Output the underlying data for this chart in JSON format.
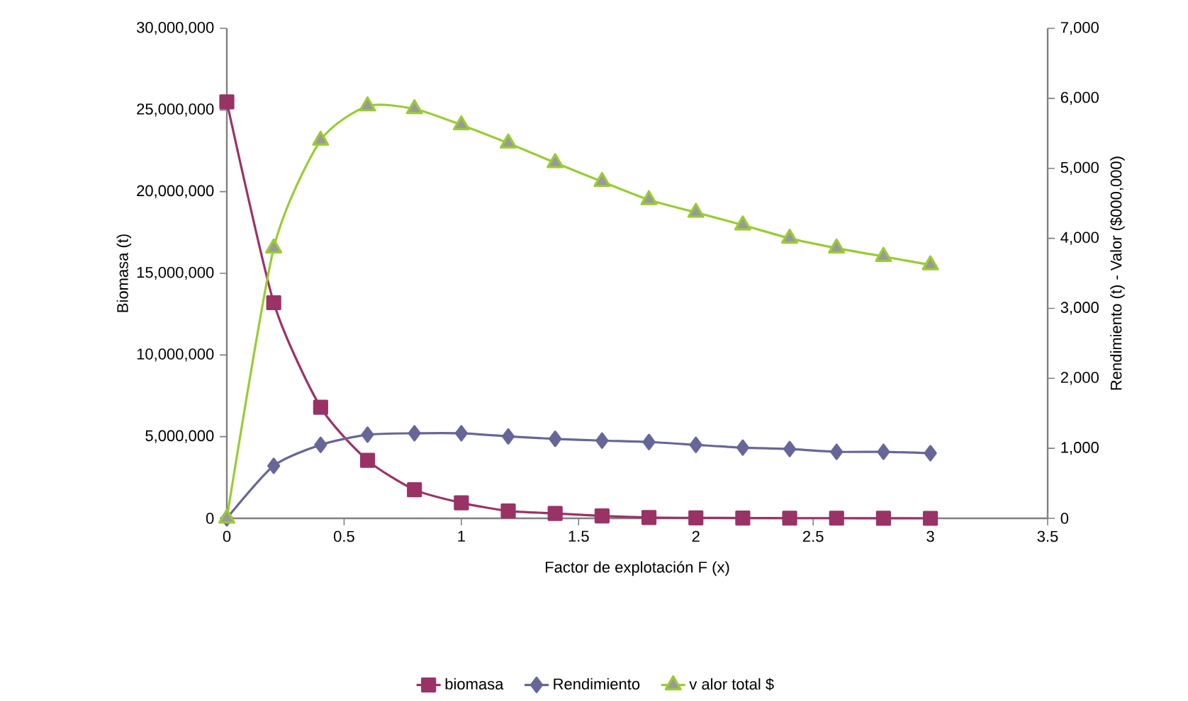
{
  "chart_data": {
    "type": "line",
    "xlabel": "Factor de explotación F (x)",
    "ylabel": "Biomasa (t)",
    "y2label": "Rendimiento (t) - Valor ($000,000)",
    "x": [
      0,
      0.2,
      0.4,
      0.6,
      0.8,
      1.0,
      1.2,
      1.4,
      1.6,
      1.8,
      2.0,
      2.2,
      2.4,
      2.6,
      2.8,
      3.0
    ],
    "series": [
      {
        "name": "biomasa",
        "color": "#993366",
        "marker": "square",
        "values": [
          25500000,
          13200000,
          6800000,
          3550000,
          1750000,
          950000,
          450000,
          300000,
          150000,
          50000,
          30000,
          20000,
          10000,
          10000,
          5000,
          0
        ]
      },
      {
        "name": "Rendimiento",
        "color": "#666699",
        "marker": "diamond",
        "axis": "y2",
        "values": [
          0,
          750,
          1050,
          1195,
          1215,
          1215,
          1170,
          1135,
          1110,
          1090,
          1050,
          1010,
          990,
          950,
          950,
          930
        ]
      },
      {
        "name": "v alor total $",
        "color": "#99cc33",
        "marker": "triangle",
        "axis": "y2",
        "values": [
          0,
          3860,
          5400,
          5890,
          5850,
          5620,
          5360,
          5080,
          4810,
          4550,
          4370,
          4190,
          4000,
          3860,
          3740,
          3620
        ]
      }
    ],
    "xlim": [
      0,
      3.5
    ],
    "xticks": [
      0,
      0.5,
      1,
      1.5,
      2,
      2.5,
      3,
      3.5
    ],
    "ylim": [
      0,
      30000000
    ],
    "yticks": [
      0,
      {
        "value": 5000000,
        "label": "5,000,000"
      },
      {
        "value": 10000000,
        "label": "10,000,000"
      },
      {
        "value": 15000000,
        "label": "15,000,000"
      },
      {
        "value": 20000000,
        "label": "20,000,000"
      },
      {
        "value": 25000000,
        "label": "25,000,000"
      },
      {
        "value": 30000000,
        "label": "30,000,000"
      }
    ],
    "y2lim": [
      0,
      7000
    ],
    "y2ticks": [
      0,
      {
        "value": 1000,
        "label": "1,000"
      },
      {
        "value": 2000,
        "label": "2,000"
      },
      {
        "value": 3000,
        "label": "3,000"
      },
      {
        "value": 4000,
        "label": "4,000"
      },
      {
        "value": 5000,
        "label": "5,000"
      },
      {
        "value": 6000,
        "label": "6,000"
      },
      {
        "value": 7000,
        "label": "7,000"
      }
    ],
    "grid": false,
    "legend": "bottom"
  }
}
